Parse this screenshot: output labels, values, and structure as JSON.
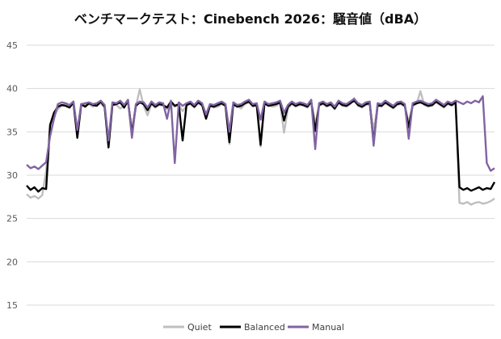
{
  "chart_data": {
    "type": "line",
    "title": "ベンチマークテスト：Cinebench 2026：騒音値（dBA）",
    "xlabel": "",
    "ylabel": "",
    "ylim": [
      15,
      45
    ],
    "yticks": [
      15,
      20,
      25,
      30,
      35,
      40,
      45
    ],
    "grid": true,
    "legend_position": "bottom",
    "x": [
      0,
      1,
      2,
      3,
      4,
      5,
      6,
      7,
      8,
      9,
      10,
      11,
      12,
      13,
      14,
      15,
      16,
      17,
      18,
      19,
      20,
      21,
      22,
      23,
      24,
      25,
      26,
      27,
      28,
      29,
      30,
      31,
      32,
      33,
      34,
      35,
      36,
      37,
      38,
      39,
      40,
      41,
      42,
      43,
      44,
      45,
      46,
      47,
      48,
      49,
      50,
      51,
      52,
      53,
      54,
      55,
      56,
      57,
      58,
      59,
      60,
      61,
      62,
      63,
      64,
      65,
      66,
      67,
      68,
      69,
      70,
      71,
      72,
      73,
      74,
      75,
      76,
      77,
      78,
      79,
      80,
      81,
      82,
      83,
      84,
      85,
      86,
      87,
      88,
      89,
      90,
      91,
      92,
      93,
      94,
      95,
      96,
      97,
      98,
      99,
      100,
      101,
      102,
      103,
      104,
      105,
      106,
      107,
      108,
      109,
      110,
      111,
      112,
      113,
      114,
      115,
      116,
      117,
      118,
      119,
      120
    ],
    "series": [
      {
        "name": "Quiet",
        "color": "#BFBFBF",
        "values": [
          27.8,
          27.4,
          27.6,
          27.3,
          27.7,
          30.5,
          35.0,
          36.8,
          37.6,
          38.0,
          38.2,
          37.9,
          38.3,
          34.5,
          38.0,
          38.1,
          38.2,
          37.9,
          38.1,
          38.3,
          37.8,
          34.0,
          38.2,
          38.1,
          37.7,
          38.0,
          38.4,
          35.3,
          37.9,
          39.9,
          38.0,
          36.9,
          38.2,
          37.8,
          38.1,
          38.0,
          37.6,
          38.3,
          37.9,
          38.1,
          37.4,
          38.0,
          38.2,
          37.8,
          38.3,
          38.0,
          36.9,
          38.1,
          37.8,
          37.9,
          38.2,
          38.0,
          33.6,
          38.1,
          38.0,
          37.7,
          38.2,
          38.4,
          37.9,
          38.0,
          33.3,
          38.2,
          38.1,
          37.9,
          38.0,
          38.3,
          34.9,
          37.7,
          38.2,
          37.9,
          38.1,
          38.0,
          37.8,
          38.4,
          35.9,
          38.0,
          38.2,
          37.9,
          38.1,
          37.6,
          38.3,
          38.0,
          37.9,
          38.2,
          38.9,
          38.0,
          37.8,
          38.1,
          38.2,
          35.1,
          38.0,
          37.9,
          38.3,
          38.0,
          37.7,
          38.1,
          38.2,
          37.9,
          36.1,
          38.0,
          38.2,
          39.7,
          38.1,
          37.9,
          38.0,
          38.4,
          38.1,
          37.8,
          38.2,
          38.0,
          38.3,
          26.8,
          26.7,
          26.9,
          26.6,
          26.8,
          26.9,
          26.7,
          26.8,
          27.0,
          27.3
        ]
      },
      {
        "name": "Balanced",
        "color": "#000000",
        "values": [
          28.8,
          28.3,
          28.6,
          28.1,
          28.5,
          28.4,
          35.8,
          37.2,
          37.9,
          38.1,
          38.0,
          37.8,
          38.4,
          34.3,
          38.2,
          37.9,
          38.3,
          38.1,
          38.0,
          38.5,
          37.9,
          33.2,
          38.1,
          38.2,
          38.4,
          37.8,
          38.6,
          34.8,
          38.0,
          38.4,
          38.2,
          37.5,
          38.3,
          37.9,
          38.2,
          38.1,
          37.8,
          38.5,
          38.0,
          38.2,
          34.0,
          38.1,
          38.3,
          37.9,
          38.4,
          38.1,
          36.5,
          38.0,
          37.9,
          38.1,
          38.3,
          38.0,
          33.8,
          38.2,
          37.9,
          38.0,
          38.3,
          38.5,
          38.0,
          38.1,
          33.5,
          38.3,
          38.0,
          38.1,
          38.2,
          38.4,
          36.3,
          37.9,
          38.3,
          38.0,
          38.2,
          38.1,
          37.9,
          38.5,
          35.1,
          38.1,
          38.3,
          38.0,
          38.2,
          37.7,
          38.4,
          38.1,
          38.0,
          38.3,
          38.6,
          38.1,
          37.9,
          38.2,
          38.3,
          33.7,
          38.1,
          38.0,
          38.4,
          38.1,
          37.8,
          38.2,
          38.3,
          38.0,
          35.5,
          38.1,
          38.3,
          38.4,
          38.2,
          38.0,
          38.1,
          38.5,
          38.2,
          37.9,
          38.3,
          38.1,
          38.4,
          28.6,
          28.3,
          28.5,
          28.2,
          28.4,
          28.6,
          28.3,
          28.5,
          28.4,
          29.2
        ]
      },
      {
        "name": "Manual",
        "color": "#8064A2",
        "values": [
          31.2,
          30.8,
          31.0,
          30.7,
          31.1,
          31.5,
          34.5,
          36.5,
          38.2,
          38.4,
          38.3,
          38.1,
          38.5,
          35.2,
          38.2,
          38.3,
          38.4,
          38.2,
          38.3,
          38.6,
          38.1,
          34.0,
          38.4,
          38.3,
          38.6,
          38.1,
          38.7,
          34.3,
          38.2,
          38.5,
          38.4,
          37.8,
          38.5,
          38.1,
          38.4,
          38.3,
          36.5,
          38.6,
          31.4,
          38.4,
          38.0,
          38.3,
          38.5,
          38.1,
          38.6,
          38.3,
          37.0,
          38.2,
          38.1,
          38.3,
          38.5,
          38.2,
          35.0,
          38.4,
          38.1,
          38.2,
          38.5,
          38.7,
          38.2,
          38.3,
          36.4,
          38.5,
          38.2,
          38.3,
          38.4,
          38.6,
          37.2,
          38.1,
          38.5,
          38.2,
          38.4,
          38.3,
          38.1,
          38.7,
          33.0,
          38.3,
          38.5,
          38.2,
          38.4,
          37.9,
          38.6,
          38.3,
          38.2,
          38.5,
          38.8,
          38.3,
          38.1,
          38.4,
          38.5,
          33.4,
          38.3,
          38.2,
          38.6,
          38.3,
          38.0,
          38.4,
          38.5,
          38.2,
          34.2,
          38.3,
          38.5,
          38.6,
          38.4,
          38.2,
          38.3,
          38.7,
          38.4,
          38.1,
          38.5,
          38.3,
          38.6,
          38.4,
          38.2,
          38.5,
          38.3,
          38.6,
          38.4,
          39.1,
          31.4,
          30.5,
          30.8
        ]
      }
    ]
  }
}
